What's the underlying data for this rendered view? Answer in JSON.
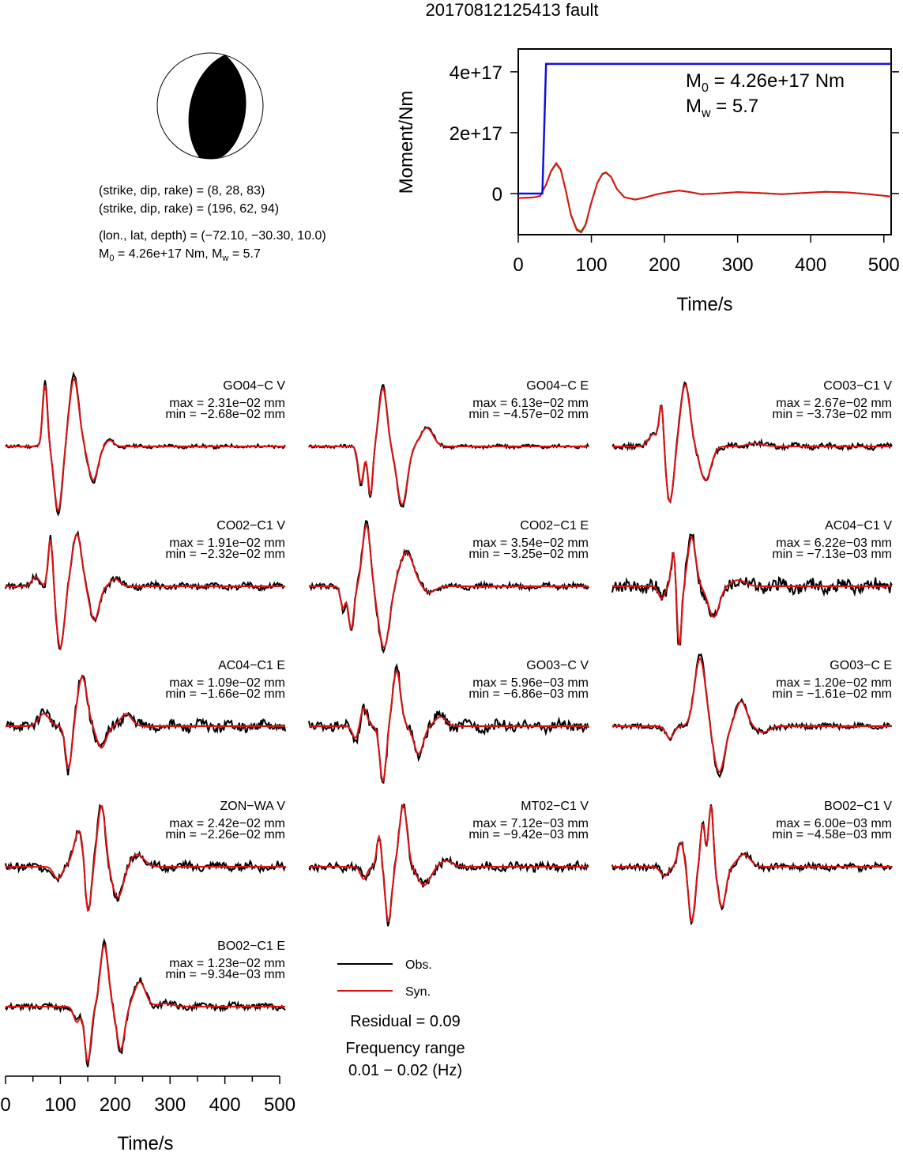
{
  "page": {
    "title": "20170812125413 fault",
    "info_lines": {
      "strike1": "(strike, dip, rake) = (8, 28, 83)",
      "strike2": "(strike, dip, rake) = (196, 62, 94)",
      "location": "(lon., lat, depth) = (−72.10, −30.30, 10.0)",
      "moment_base": "M",
      "moment_sub": "0",
      "moment_rest": " = 4.26e+17 Nm, M",
      "moment_sub2": "w",
      "moment_tail": " = 5.7"
    }
  },
  "colors": {
    "obs": "#000000",
    "syn": "#e01010",
    "moment": "#1010e0",
    "stf_green": "#20b020"
  },
  "chart_data": [
    {
      "type": "line",
      "name": "moment-function",
      "xlabel": "Time/s",
      "ylabel": "Moment/Nm",
      "xlim": [
        0,
        510
      ],
      "ylim": [
        -1.35e+17,
        4.75e+17
      ],
      "xticks": [
        0,
        100,
        200,
        300,
        400,
        500
      ],
      "yticks": [
        {
          "value": 0,
          "label": "0"
        },
        {
          "value": 2e+17,
          "label": "2e+17"
        },
        {
          "value": 4e+17,
          "label": "4e+17"
        }
      ],
      "annotation": {
        "m0_base": "M",
        "m0_sub": "0",
        "m0_value": " = 4.26e+17 Nm",
        "mw_base": "M",
        "mw_sub": "w",
        "mw_value": " = 5.7"
      },
      "cumulative_moment": {
        "x": [
          0,
          33,
          38,
          510
        ],
        "y": [
          0,
          0,
          4.26e+17,
          4.26e+17
        ]
      },
      "source_time_function": {
        "x": [
          0,
          20,
          30,
          38,
          45,
          52,
          58,
          65,
          72,
          80,
          86,
          92,
          100,
          108,
          115,
          120,
          127,
          135,
          145,
          160,
          175,
          190,
          205,
          220,
          235,
          250,
          270,
          300,
          330,
          360,
          390,
          420,
          450,
          480,
          510
        ],
        "y": [
          -1.5e+16,
          -1.3e+16,
          -8000000000000000.0,
          3e+16,
          7.5e+16,
          1e+17,
          8e+16,
          1e+16,
          -7e+16,
          -1.2e+17,
          -1.28e+17,
          -1.05e+17,
          -3e+16,
          3.5e+16,
          6.5e+16,
          7e+16,
          5.5e+16,
          1.5e+16,
          -1.2e+16,
          -2e+16,
          -1.2e+16,
          -2000000000000000.0,
          5000000000000000.0,
          1e+16,
          5000000000000000.0,
          -2000000000000000.0,
          0.0,
          5000000000000000.0,
          2000000000000000.0,
          -2000000000000000.0,
          2000000000000000.0,
          6000000000000000.0,
          4000000000000000.0,
          -2000000000000000.0,
          -1e+16
        ]
      }
    },
    {
      "type": "line",
      "name": "waveform-fits",
      "xlabel": "Time/s",
      "xlim": [
        0,
        510
      ],
      "xticks": [
        0,
        100,
        200,
        300,
        400,
        500
      ],
      "legend": {
        "obs": "Obs.",
        "syn": "Syn."
      },
      "residual": "Residual = 0.09",
      "freq_title": "Frequency range",
      "freq_value": "0.01 − 0.02 (Hz)",
      "stations": [
        {
          "name": "GO04−C V",
          "max": "max = 2.31e−02 mm",
          "min": "min = −2.68e−02 mm"
        },
        {
          "name": "GO04−C E",
          "max": "max = 6.13e−02 mm",
          "min": "min = −4.57e−02 mm"
        },
        {
          "name": "CO03−C1 V",
          "max": "max = 2.67e−02 mm",
          "min": "min = −3.73e−02 mm"
        },
        {
          "name": "CO02−C1 V",
          "max": "max = 1.91e−02 mm",
          "min": "min = −2.32e−02 mm"
        },
        {
          "name": "CO02−C1 E",
          "max": "max = 3.54e−02 mm",
          "min": "min = −3.25e−02 mm"
        },
        {
          "name": "AC04−C1 V",
          "max": "max = 6.22e−03 mm",
          "min": "min = −7.13e−03 mm"
        },
        {
          "name": "AC04−C1 E",
          "max": "max = 1.09e−02 mm",
          "min": "min = −1.66e−02 mm"
        },
        {
          "name": "GO03−C V",
          "max": "max = 5.96e−03 mm",
          "min": "min = −6.86e−03 mm"
        },
        {
          "name": "GO03−C E",
          "max": "max = 1.20e−02 mm",
          "min": "min = −1.61e−02 mm"
        },
        {
          "name": "ZON−WA V",
          "max": "max = 2.42e−02 mm",
          "min": "min = −2.26e−02 mm"
        },
        {
          "name": "MT02−C1 V",
          "max": "max = 7.12e−03 mm",
          "min": "min = −9.42e−03 mm"
        },
        {
          "name": "BO02−C1 V",
          "max": "max = 6.00e−03 mm",
          "min": "min = −4.58e−03 mm"
        },
        {
          "name": "BO02−C1 E",
          "max": "max = 1.23e−02 mm",
          "min": "min = −9.34e−03 mm"
        }
      ]
    }
  ]
}
